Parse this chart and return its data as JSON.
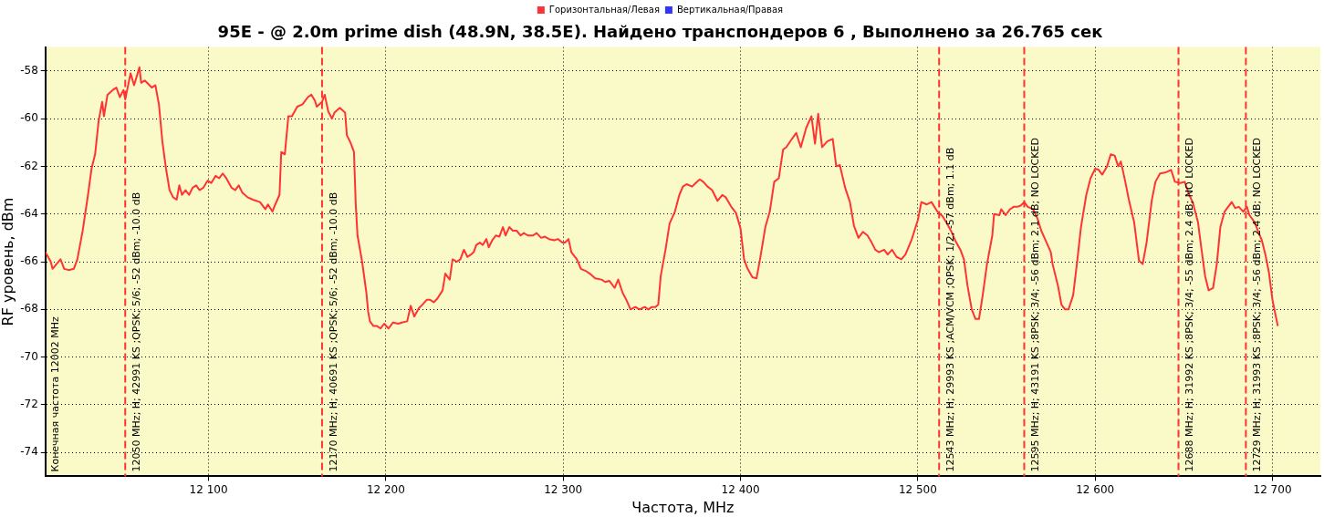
{
  "chart_data": {
    "type": "line",
    "title": "95E - @ 2.0m prime dish (48.9N, 38.5E). Найдено транспондеров 6 , Выполнено за 26.765 сек",
    "xlabel": "Частота, MHz",
    "ylabel": "RF уровень, dBm",
    "xlim": [
      12008,
      12727
    ],
    "xticks": [
      {
        "value": 12100,
        "label": "12 100"
      },
      {
        "value": 12200,
        "label": "12 200"
      },
      {
        "value": 12300,
        "label": "12 300"
      },
      {
        "value": 12400,
        "label": "12 400"
      },
      {
        "value": 12500,
        "label": "12 500"
      },
      {
        "value": 12600,
        "label": "12 600"
      },
      {
        "value": 12700,
        "label": "12 700"
      }
    ],
    "ylim": [
      -75,
      -57
    ],
    "yticks": [
      -74,
      -72,
      -70,
      -68,
      -66,
      -64,
      -62,
      -60,
      -58
    ],
    "grid": true,
    "legend": "top",
    "marker": "none",
    "line_style": "solid",
    "series": [
      {
        "name": "Горизонтальная/Левая",
        "color": "#ff3333",
        "x": [
          12008,
          12011,
          12012,
          12016.5,
          12018.6,
          12021,
          12024,
          12026,
          12029,
          12032,
          12034,
          12036,
          12038,
          12040,
          12041,
          12043,
          12046,
          12048,
          12050,
          12052,
          12053,
          12056,
          12058,
          12061,
          12062,
          12064,
          12068,
          12070,
          12072,
          12074,
          12076,
          12078,
          12080,
          12082,
          12083.5,
          12085,
          12087,
          12089,
          12091,
          12093,
          12095,
          12097,
          12099.5,
          12101.5,
          12104,
          12106,
          12108,
          12110,
          12113,
          12115,
          12117,
          12119,
          12122,
          12125,
          12129,
          12132,
          12133.5,
          12136,
          12137.6,
          12140,
          12141,
          12143,
          12145,
          12147,
          12150,
          12153,
          12156,
          12158,
          12160,
          12161,
          12164,
          12165.5,
          12167.5,
          12169.6,
          12171,
          12174,
          12177,
          12178,
          12180,
          12182,
          12183,
          12184,
          12186.6,
          12189,
          12190,
          12191,
          12193,
          12195,
          12197,
          12199,
          12201.5,
          12204,
          12207,
          12209,
          12212,
          12214,
          12216,
          12218.6,
          12220.6,
          12223,
          12225,
          12227,
          12229,
          12232,
          12233.5,
          12236,
          12237.6,
          12240,
          12242,
          12244,
          12246,
          12248,
          12249.5,
          12251,
          12253,
          12254.6,
          12256.7,
          12258,
          12260,
          12262,
          12264,
          12266,
          12267.5,
          12269.6,
          12271.6,
          12273.7,
          12276,
          12277.8,
          12280,
          12283,
          12285,
          12287.6,
          12289.7,
          12292,
          12295,
          12297,
          12299.5,
          12301,
          12303,
          12304.6,
          12307.7,
          12310,
          12313,
          12315,
          12318,
          12321.6,
          12323.7,
          12326,
          12329,
          12331,
          12333.5,
          12335.6,
          12338,
          12340.7,
          12343,
          12346,
          12348,
          12350,
          12352,
          12353.6,
          12355,
          12357.7,
          12360,
          12363,
          12365.5,
          12367.5,
          12369.6,
          12372.7,
          12374.7,
          12377,
          12379,
          12381.4,
          12384,
          12387,
          12389.7,
          12391.7,
          12394.8,
          12397.4,
          12400,
          12402,
          12404,
          12406.7,
          12409,
          12411,
          12414,
          12416.5,
          12419,
          12421.6,
          12424,
          12425.8,
          12429,
          12431.4,
          12434,
          12437,
          12440,
          12442,
          12443.8,
          12446,
          12449,
          12452,
          12454,
          12456,
          12459,
          12461.7,
          12464,
          12466.5,
          12469,
          12471.6,
          12474,
          12476,
          12478,
          12481,
          12483,
          12485.5,
          12488,
          12490.7,
          12493,
          12496.4,
          12500,
          12502,
          12505,
          12507.7,
          12511,
          12514,
          12516,
          12519,
          12521,
          12524,
          12526,
          12528,
          12530.4,
          12532.5,
          12534.5,
          12536.6,
          12539,
          12542,
          12543,
          12546,
          12547,
          12549.5,
          12552,
          12554,
          12556,
          12558,
          12560,
          12562,
          12565,
          12567.5,
          12569.6,
          12572,
          12575,
          12576,
          12579,
          12581,
          12583,
          12585,
          12587.6,
          12590,
          12592,
          12595,
          12597.4,
          12600,
          12602,
          12604,
          12606.7,
          12608.8,
          12611,
          12613,
          12614.5,
          12617,
          12619,
          12622,
          12624.7,
          12626.8,
          12629,
          12632,
          12634,
          12636.6,
          12640,
          12642.8,
          12645,
          12648,
          12650.5,
          12653,
          12655,
          12658,
          12660,
          12662,
          12664,
          12666.5,
          12668.6,
          12670.6,
          12673,
          12675,
          12677,
          12679,
          12681,
          12683.5,
          12685.6,
          12687,
          12690,
          12692,
          12694,
          12696,
          12698,
          12700,
          12703
        ],
        "values": [
          -65.6,
          -66.0,
          -66.3,
          -65.9,
          -66.3,
          -66.35,
          -66.3,
          -65.9,
          -64.7,
          -63.2,
          -62.1,
          -61.5,
          -60.1,
          -59.3,
          -59.9,
          -59.0,
          -58.8,
          -58.7,
          -59.1,
          -58.8,
          -59.2,
          -58.1,
          -58.6,
          -57.85,
          -58.5,
          -58.4,
          -58.7,
          -58.6,
          -59.4,
          -61.0,
          -62.1,
          -63.0,
          -63.3,
          -63.4,
          -62.8,
          -63.2,
          -63.0,
          -63.2,
          -62.9,
          -62.8,
          -63.0,
          -62.9,
          -62.6,
          -62.7,
          -62.4,
          -62.5,
          -62.3,
          -62.5,
          -62.9,
          -63.0,
          -62.8,
          -63.1,
          -63.3,
          -63.4,
          -63.5,
          -63.8,
          -63.6,
          -63.9,
          -63.6,
          -63.2,
          -61.4,
          -61.5,
          -59.9,
          -59.9,
          -59.5,
          -59.4,
          -59.1,
          -59.0,
          -59.25,
          -59.5,
          -59.3,
          -59.0,
          -59.7,
          -60.0,
          -59.75,
          -59.55,
          -59.75,
          -60.7,
          -61.0,
          -61.4,
          -63.6,
          -64.9,
          -66.0,
          -67.3,
          -68.1,
          -68.5,
          -68.7,
          -68.7,
          -68.8,
          -68.6,
          -68.8,
          -68.55,
          -68.6,
          -68.55,
          -68.5,
          -67.85,
          -68.3,
          -67.95,
          -67.8,
          -67.6,
          -67.6,
          -67.7,
          -67.55,
          -67.2,
          -66.5,
          -66.75,
          -65.9,
          -66.0,
          -65.9,
          -65.5,
          -65.8,
          -65.7,
          -65.6,
          -65.3,
          -65.2,
          -65.3,
          -65.05,
          -65.4,
          -65.1,
          -64.9,
          -64.95,
          -64.55,
          -64.9,
          -64.55,
          -64.7,
          -64.7,
          -64.9,
          -64.8,
          -64.9,
          -64.9,
          -64.8,
          -65.0,
          -64.95,
          -65.05,
          -65.1,
          -65.05,
          -65.2,
          -65.2,
          -65.05,
          -65.6,
          -65.9,
          -66.3,
          -66.4,
          -66.5,
          -66.7,
          -66.75,
          -66.85,
          -66.8,
          -67.1,
          -66.75,
          -67.3,
          -67.6,
          -68.0,
          -67.9,
          -68.0,
          -67.9,
          -68.0,
          -67.9,
          -67.9,
          -67.8,
          -66.6,
          -65.5,
          -64.4,
          -63.9,
          -63.2,
          -62.85,
          -62.75,
          -62.85,
          -62.7,
          -62.55,
          -62.65,
          -62.85,
          -63.0,
          -63.45,
          -63.2,
          -63.3,
          -63.7,
          -63.95,
          -64.6,
          -65.9,
          -66.3,
          -66.65,
          -66.7,
          -65.9,
          -64.55,
          -63.9,
          -62.65,
          -62.5,
          -61.3,
          -61.2,
          -60.85,
          -60.6,
          -61.2,
          -60.4,
          -59.9,
          -61.05,
          -59.8,
          -61.2,
          -60.95,
          -60.85,
          -62.0,
          -61.95,
          -62.9,
          -63.5,
          -64.5,
          -65.0,
          -64.75,
          -64.9,
          -65.2,
          -65.5,
          -65.6,
          -65.5,
          -65.7,
          -65.5,
          -65.8,
          -65.9,
          -65.7,
          -65.1,
          -64.25,
          -63.5,
          -63.6,
          -63.5,
          -63.9,
          -64.1,
          -64.35,
          -64.75,
          -65.1,
          -65.5,
          -65.9,
          -67.0,
          -68.0,
          -68.4,
          -68.4,
          -67.4,
          -66.1,
          -64.9,
          -64.0,
          -64.05,
          -63.8,
          -64.05,
          -63.8,
          -63.7,
          -63.7,
          -63.65,
          -63.5,
          -63.7,
          -63.8,
          -64.2,
          -64.7,
          -65.1,
          -65.6,
          -66.1,
          -67.0,
          -67.8,
          -68.0,
          -68.0,
          -67.4,
          -65.9,
          -64.55,
          -63.2,
          -62.5,
          -62.1,
          -62.15,
          -62.35,
          -62.0,
          -61.5,
          -61.55,
          -62.0,
          -61.8,
          -62.65,
          -63.4,
          -64.35,
          -65.95,
          -66.1,
          -65.2,
          -63.4,
          -62.65,
          -62.3,
          -62.25,
          -62.15,
          -62.65,
          -62.7,
          -62.65,
          -63.2,
          -63.5,
          -64.35,
          -65.5,
          -66.6,
          -67.2,
          -67.1,
          -66.1,
          -64.55,
          -63.9,
          -63.7,
          -63.5,
          -63.75,
          -63.7,
          -63.9,
          -63.7,
          -64.05,
          -64.35,
          -64.75,
          -65.1,
          -65.7,
          -66.45,
          -67.6,
          -68.7
        ]
      },
      {
        "name": "Вертикальная/Правая",
        "color": "#3333ff"
      }
    ],
    "ref_lines": [
      {
        "axis": "x",
        "value": 12053,
        "label": "12050 MHz; H; 42991 KS ;QPSK; 5/6; -52 dBm; -10.0 dB",
        "color": "#ff3333",
        "line_style": "dashed"
      },
      {
        "axis": "x",
        "value": 12164,
        "label": "12170 MHz; H; 40691 KS ;QPSK; 5/6; -52 dBm; -10.0 dB",
        "color": "#ff3333",
        "line_style": "dashed"
      },
      {
        "axis": "x",
        "value": 12512,
        "label": "12543 MHz; H; 29993 KS ;ACM/VCM ;QPSK; 1/2; -57 dBm; 1.1 dB",
        "color": "#ff3333",
        "line_style": "dashed"
      },
      {
        "axis": "x",
        "value": 12560,
        "label": "12595 MHz; H; 43191 KS ;8PSK; 3/4; -56 dBm; 2.1 dB; NO LOCKED",
        "color": "#ff3333",
        "line_style": "dashed"
      },
      {
        "axis": "x",
        "value": 12647,
        "label": "12688 MHz; H; 31992 KS ;8PSK; 3/4; -55 dBm; 2.4 dB; NO LOCKED",
        "color": "#ff3333",
        "line_style": "dashed"
      },
      {
        "axis": "x",
        "value": 12685,
        "label": "12729 MHz; H; 31993 KS ;8PSK; 3/4; -56 dBm; 2.4 dB; NO LOCKED",
        "color": "#ff3333",
        "line_style": "dashed"
      }
    ],
    "annotations": [
      "Конечная частота 12002 MHz"
    ]
  }
}
